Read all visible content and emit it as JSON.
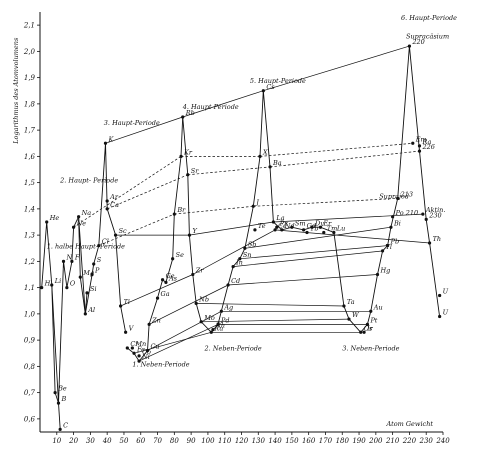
{
  "chart_data": {
    "type": "line",
    "title": "",
    "ylabel": "Logarithmus des Atomvolumens",
    "xlabel": "Atom Gewicht",
    "xlim": [
      0,
      240
    ],
    "ylim": [
      0.55,
      2.15
    ],
    "x_ticks": [
      10,
      20,
      30,
      40,
      50,
      60,
      70,
      80,
      90,
      100,
      110,
      120,
      130,
      140,
      150,
      160,
      170,
      180,
      190,
      200,
      210,
      220,
      230,
      240
    ],
    "y_ticks": [
      0.6,
      0.7,
      0.8,
      0.9,
      1.0,
      1.1,
      1.2,
      1.3,
      1.4,
      1.5,
      1.6,
      1.7,
      1.8,
      1.9,
      2.0,
      2.1
    ],
    "y_tick_labels": [
      "0,6",
      "0,7",
      "0,8",
      "0,9",
      "1,0",
      "1,1",
      "1,2",
      "1,3",
      "1,4",
      "1,5",
      "1,6",
      "1,7",
      "1,8",
      "1,9",
      "2,0",
      "2,1"
    ],
    "grid": false,
    "period_labels": [
      {
        "text": "1. halbe Haupt- Periode",
        "x": 4,
        "y": 1.25
      },
      {
        "text": "2. Haupt- Periode",
        "x": 12,
        "y": 1.5
      },
      {
        "text": "3. Haupt-Periode",
        "x": 38,
        "y": 1.72
      },
      {
        "text": "4. Haupt-Periode",
        "x": 85,
        "y": 1.78
      },
      {
        "text": "5. Haupt-Periode",
        "x": 125,
        "y": 1.88
      },
      {
        "text": "6. Haupt-Periode",
        "x": 215,
        "y": 2.12
      },
      {
        "text": "1. Neben-Periode",
        "x": 55,
        "y": 0.8
      },
      {
        "text": "2. Neben-Periode",
        "x": 98,
        "y": 0.86
      },
      {
        "text": "3. Neben-Periode",
        "x": 180,
        "y": 0.86
      },
      {
        "text": "Suprajod",
        "x": 202,
        "y": 1.44
      },
      {
        "text": "Supracäsium",
        "x": 218,
        "y": 2.05
      }
    ],
    "elements": [
      {
        "symbol": "H",
        "x": 1,
        "y": 1.1
      },
      {
        "symbol": "He",
        "x": 4,
        "y": 1.35
      },
      {
        "symbol": "Li",
        "x": 7,
        "y": 1.11
      },
      {
        "symbol": "Be",
        "x": 9,
        "y": 0.7
      },
      {
        "symbol": "B",
        "x": 11,
        "y": 0.66
      },
      {
        "symbol": "C",
        "x": 12,
        "y": 0.56
      },
      {
        "symbol": "N",
        "x": 14,
        "y": 1.2
      },
      {
        "symbol": "O",
        "x": 16,
        "y": 1.1
      },
      {
        "symbol": "F",
        "x": 19,
        "y": 1.2
      },
      {
        "symbol": "Ne",
        "x": 20,
        "y": 1.33
      },
      {
        "symbol": "Na",
        "x": 23,
        "y": 1.37
      },
      {
        "symbol": "Mg",
        "x": 24,
        "y": 1.14
      },
      {
        "symbol": "Al",
        "x": 27,
        "y": 1.0
      },
      {
        "symbol": "Si",
        "x": 28,
        "y": 1.08
      },
      {
        "symbol": "P",
        "x": 31,
        "y": 1.15
      },
      {
        "symbol": "S",
        "x": 32,
        "y": 1.19
      },
      {
        "symbol": "Cl",
        "x": 35,
        "y": 1.26
      },
      {
        "symbol": "Ar",
        "x": 40,
        "y": 1.43
      },
      {
        "symbol": "K",
        "x": 39,
        "y": 1.65
      },
      {
        "symbol": "Ca",
        "x": 40,
        "y": 1.4
      },
      {
        "symbol": "Sc",
        "x": 45,
        "y": 1.3
      },
      {
        "symbol": "Ti",
        "x": 48,
        "y": 1.03
      },
      {
        "symbol": "V",
        "x": 51,
        "y": 0.93
      },
      {
        "symbol": "Cr",
        "x": 52,
        "y": 0.87
      },
      {
        "symbol": "Mn",
        "x": 55,
        "y": 0.87
      },
      {
        "symbol": "Fe",
        "x": 56,
        "y": 0.85
      },
      {
        "symbol": "Co",
        "x": 59,
        "y": 0.84
      },
      {
        "symbol": "Ni",
        "x": 59,
        "y": 0.82
      },
      {
        "symbol": "Cu",
        "x": 64,
        "y": 0.86
      },
      {
        "symbol": "Zn",
        "x": 65,
        "y": 0.96
      },
      {
        "symbol": "Ga",
        "x": 70,
        "y": 1.06
      },
      {
        "symbol": "Ge",
        "x": 73,
        "y": 1.13
      },
      {
        "symbol": "As",
        "x": 75,
        "y": 1.12
      },
      {
        "symbol": "Se",
        "x": 79,
        "y": 1.21
      },
      {
        "symbol": "Br",
        "x": 80,
        "y": 1.38
      },
      {
        "symbol": "Kr",
        "x": 84,
        "y": 1.6
      },
      {
        "symbol": "Rb",
        "x": 85,
        "y": 1.75
      },
      {
        "symbol": "Sr",
        "x": 88,
        "y": 1.53
      },
      {
        "symbol": "Y",
        "x": 89,
        "y": 1.3
      },
      {
        "symbol": "Zr",
        "x": 91,
        "y": 1.15
      },
      {
        "symbol": "Nb",
        "x": 93,
        "y": 1.04
      },
      {
        "symbol": "Mo",
        "x": 96,
        "y": 0.97
      },
      {
        "symbol": "Ru",
        "x": 102,
        "y": 0.93
      },
      {
        "symbol": "Rh",
        "x": 103,
        "y": 0.94
      },
      {
        "symbol": "Pd",
        "x": 106,
        "y": 0.96
      },
      {
        "symbol": "Ag",
        "x": 108,
        "y": 1.01
      },
      {
        "symbol": "Cd",
        "x": 112,
        "y": 1.11
      },
      {
        "symbol": "In",
        "x": 115,
        "y": 1.18
      },
      {
        "symbol": "Sn",
        "x": 119,
        "y": 1.21
      },
      {
        "symbol": "Sb",
        "x": 122,
        "y": 1.25
      },
      {
        "symbol": "Te",
        "x": 128,
        "y": 1.32
      },
      {
        "symbol": "J",
        "x": 127,
        "y": 1.41
      },
      {
        "symbol": "X",
        "x": 131,
        "y": 1.6
      },
      {
        "symbol": "Cs",
        "x": 133,
        "y": 1.85
      },
      {
        "symbol": "Ba",
        "x": 137,
        "y": 1.56
      },
      {
        "symbol": "La",
        "x": 139,
        "y": 1.35
      },
      {
        "symbol": "Ce",
        "x": 140,
        "y": 1.32
      },
      {
        "symbol": "Pr",
        "x": 141,
        "y": 1.33
      },
      {
        "symbol": "Nd",
        "x": 144,
        "y": 1.32
      },
      {
        "symbol": "Sm",
        "x": 150,
        "y": 1.33
      },
      {
        "symbol": "Gd",
        "x": 157,
        "y": 1.32
      },
      {
        "symbol": "Dy",
        "x": 162,
        "y": 1.33
      },
      {
        "symbol": "Er",
        "x": 167,
        "y": 1.33
      },
      {
        "symbol": "Tb",
        "x": 159,
        "y": 1.31
      },
      {
        "symbol": "Tm",
        "x": 169,
        "y": 1.31
      },
      {
        "symbol": "Lu",
        "x": 175,
        "y": 1.31
      },
      {
        "symbol": "Ta",
        "x": 181,
        "y": 1.03
      },
      {
        "symbol": "W",
        "x": 184,
        "y": 0.98
      },
      {
        "symbol": "Os",
        "x": 191,
        "y": 0.93
      },
      {
        "symbol": "Ir",
        "x": 193,
        "y": 0.93
      },
      {
        "symbol": "Pt",
        "x": 195,
        "y": 0.96
      },
      {
        "symbol": "Au",
        "x": 197,
        "y": 1.01
      },
      {
        "symbol": "Hg",
        "x": 201,
        "y": 1.15
      },
      {
        "symbol": "Tl",
        "x": 204,
        "y": 1.24
      },
      {
        "symbol": "Pb",
        "x": 207,
        "y": 1.26
      },
      {
        "symbol": "Bi",
        "x": 209,
        "y": 1.33
      },
      {
        "symbol": "Po 210",
        "x": 210,
        "y": 1.37
      },
      {
        "symbol": "213",
        "x": 213,
        "y": 1.44
      },
      {
        "symbol": "Em",
        "x": 222,
        "y": 1.65
      },
      {
        "symbol": "Ra",
        "x": 226,
        "y": 1.64
      },
      {
        "symbol": "226",
        "x": 226,
        "y": 1.62
      },
      {
        "symbol": "220",
        "x": 220,
        "y": 2.02
      },
      {
        "symbol": "Aktin.",
        "x": 228,
        "y": 1.38
      },
      {
        "symbol": "230",
        "x": 230,
        "y": 1.36
      },
      {
        "symbol": "Th",
        "x": 232,
        "y": 1.27
      },
      {
        "symbol": "U",
        "x": 238,
        "y": 1.07
      },
      {
        "symbol": "U",
        "x": 238,
        "y": 0.99
      }
    ],
    "series": [
      {
        "x": [
          1,
          4,
          7,
          9,
          11,
          12
        ],
        "y": [
          1.1,
          1.35,
          1.11,
          0.7,
          0.66,
          0.56
        ]
      },
      {
        "x": [
          7,
          11,
          14,
          16,
          19,
          20,
          23,
          24,
          27,
          28
        ],
        "y": [
          1.11,
          0.66,
          1.2,
          1.1,
          1.2,
          1.33,
          1.37,
          1.14,
          1.0,
          1.08
        ]
      },
      {
        "x": [
          23,
          27,
          31,
          32,
          35,
          39,
          40,
          45,
          48,
          51
        ],
        "y": [
          1.37,
          1.0,
          1.15,
          1.19,
          1.26,
          1.65,
          1.4,
          1.3,
          1.03,
          0.93
        ]
      },
      {
        "x": [
          52,
          56,
          59,
          64,
          65,
          70,
          73,
          75,
          79,
          80,
          84,
          85
        ],
        "y": [
          0.87,
          0.85,
          0.82,
          0.86,
          0.96,
          1.06,
          1.13,
          1.12,
          1.21,
          1.38,
          1.6,
          1.75
        ]
      },
      {
        "x": [
          85,
          88,
          89,
          91,
          93,
          96,
          102
        ],
        "y": [
          1.75,
          1.53,
          1.3,
          1.15,
          1.04,
          0.97,
          0.93
        ]
      },
      {
        "x": [
          102,
          106,
          108,
          112,
          115,
          119,
          122,
          127,
          131,
          133
        ],
        "y": [
          0.93,
          0.96,
          1.01,
          1.11,
          1.18,
          1.21,
          1.25,
          1.41,
          1.6,
          1.85
        ]
      },
      {
        "x": [
          133,
          137,
          139,
          144,
          150,
          157,
          162,
          167,
          175,
          181,
          184,
          191
        ],
        "y": [
          1.85,
          1.56,
          1.35,
          1.32,
          1.33,
          1.32,
          1.33,
          1.33,
          1.31,
          1.03,
          0.98,
          0.93
        ]
      },
      {
        "x": [
          191,
          195,
          197,
          201,
          204,
          207,
          209,
          213,
          220
        ],
        "y": [
          0.93,
          0.96,
          1.01,
          1.15,
          1.24,
          1.26,
          1.33,
          1.44,
          2.02
        ]
      },
      {
        "x": [
          220,
          226,
          230,
          232,
          238
        ],
        "y": [
          2.02,
          1.62,
          1.36,
          1.27,
          0.99
        ]
      }
    ],
    "dashed_links": [
      {
        "x": [
          20,
          84
        ],
        "y": [
          1.33,
          1.6
        ]
      },
      {
        "x": [
          84,
          131
        ],
        "y": [
          1.6,
          1.6
        ]
      },
      {
        "x": [
          131,
          222
        ],
        "y": [
          1.6,
          1.65
        ]
      },
      {
        "x": [
          35,
          80
        ],
        "y": [
          1.26,
          1.38
        ]
      },
      {
        "x": [
          80,
          127
        ],
        "y": [
          1.38,
          1.41
        ]
      },
      {
        "x": [
          127,
          213
        ],
        "y": [
          1.41,
          1.44
        ]
      },
      {
        "x": [
          40,
          88
        ],
        "y": [
          1.4,
          1.53
        ]
      },
      {
        "x": [
          88,
          137
        ],
        "y": [
          1.53,
          1.56
        ]
      },
      {
        "x": [
          137,
          226
        ],
        "y": [
          1.56,
          1.62
        ]
      }
    ],
    "solid_links": [
      {
        "x": [
          39,
          85
        ],
        "y": [
          1.65,
          1.75
        ]
      },
      {
        "x": [
          85,
          133
        ],
        "y": [
          1.75,
          1.85
        ]
      },
      {
        "x": [
          133,
          220
        ],
        "y": [
          1.85,
          2.02
        ]
      },
      {
        "x": [
          56,
          102
        ],
        "y": [
          0.85,
          0.93
        ]
      },
      {
        "x": [
          102,
          191
        ],
        "y": [
          0.93,
          0.93
        ]
      },
      {
        "x": [
          59,
          106
        ],
        "y": [
          0.82,
          0.96
        ]
      },
      {
        "x": [
          106,
          195
        ],
        "y": [
          0.96,
          0.96
        ]
      },
      {
        "x": [
          64,
          108
        ],
        "y": [
          0.86,
          1.01
        ]
      },
      {
        "x": [
          108,
          197
        ],
        "y": [
          1.01,
          1.01
        ]
      },
      {
        "x": [
          65,
          112
        ],
        "y": [
          0.96,
          1.11
        ]
      },
      {
        "x": [
          112,
          201
        ],
        "y": [
          1.11,
          1.15
        ]
      },
      {
        "x": [
          96,
          184
        ],
        "y": [
          0.97,
          0.98
        ]
      },
      {
        "x": [
          93,
          181
        ],
        "y": [
          1.04,
          1.03
        ]
      },
      {
        "x": [
          122,
          209
        ],
        "y": [
          1.25,
          1.33
        ]
      },
      {
        "x": [
          119,
          207
        ],
        "y": [
          1.21,
          1.26
        ]
      },
      {
        "x": [
          115,
          204
        ],
        "y": [
          1.18,
          1.24
        ]
      },
      {
        "x": [
          48,
          91
        ],
        "y": [
          1.03,
          1.15
        ]
      },
      {
        "x": [
          91,
          140
        ],
        "y": [
          1.15,
          1.32
        ]
      },
      {
        "x": [
          140,
          232
        ],
        "y": [
          1.32,
          1.27
        ]
      },
      {
        "x": [
          45,
          89
        ],
        "y": [
          1.3,
          1.3
        ]
      },
      {
        "x": [
          89,
          139
        ],
        "y": [
          1.3,
          1.35
        ]
      },
      {
        "x": [
          139,
          228
        ],
        "y": [
          1.35,
          1.38
        ]
      }
    ]
  }
}
